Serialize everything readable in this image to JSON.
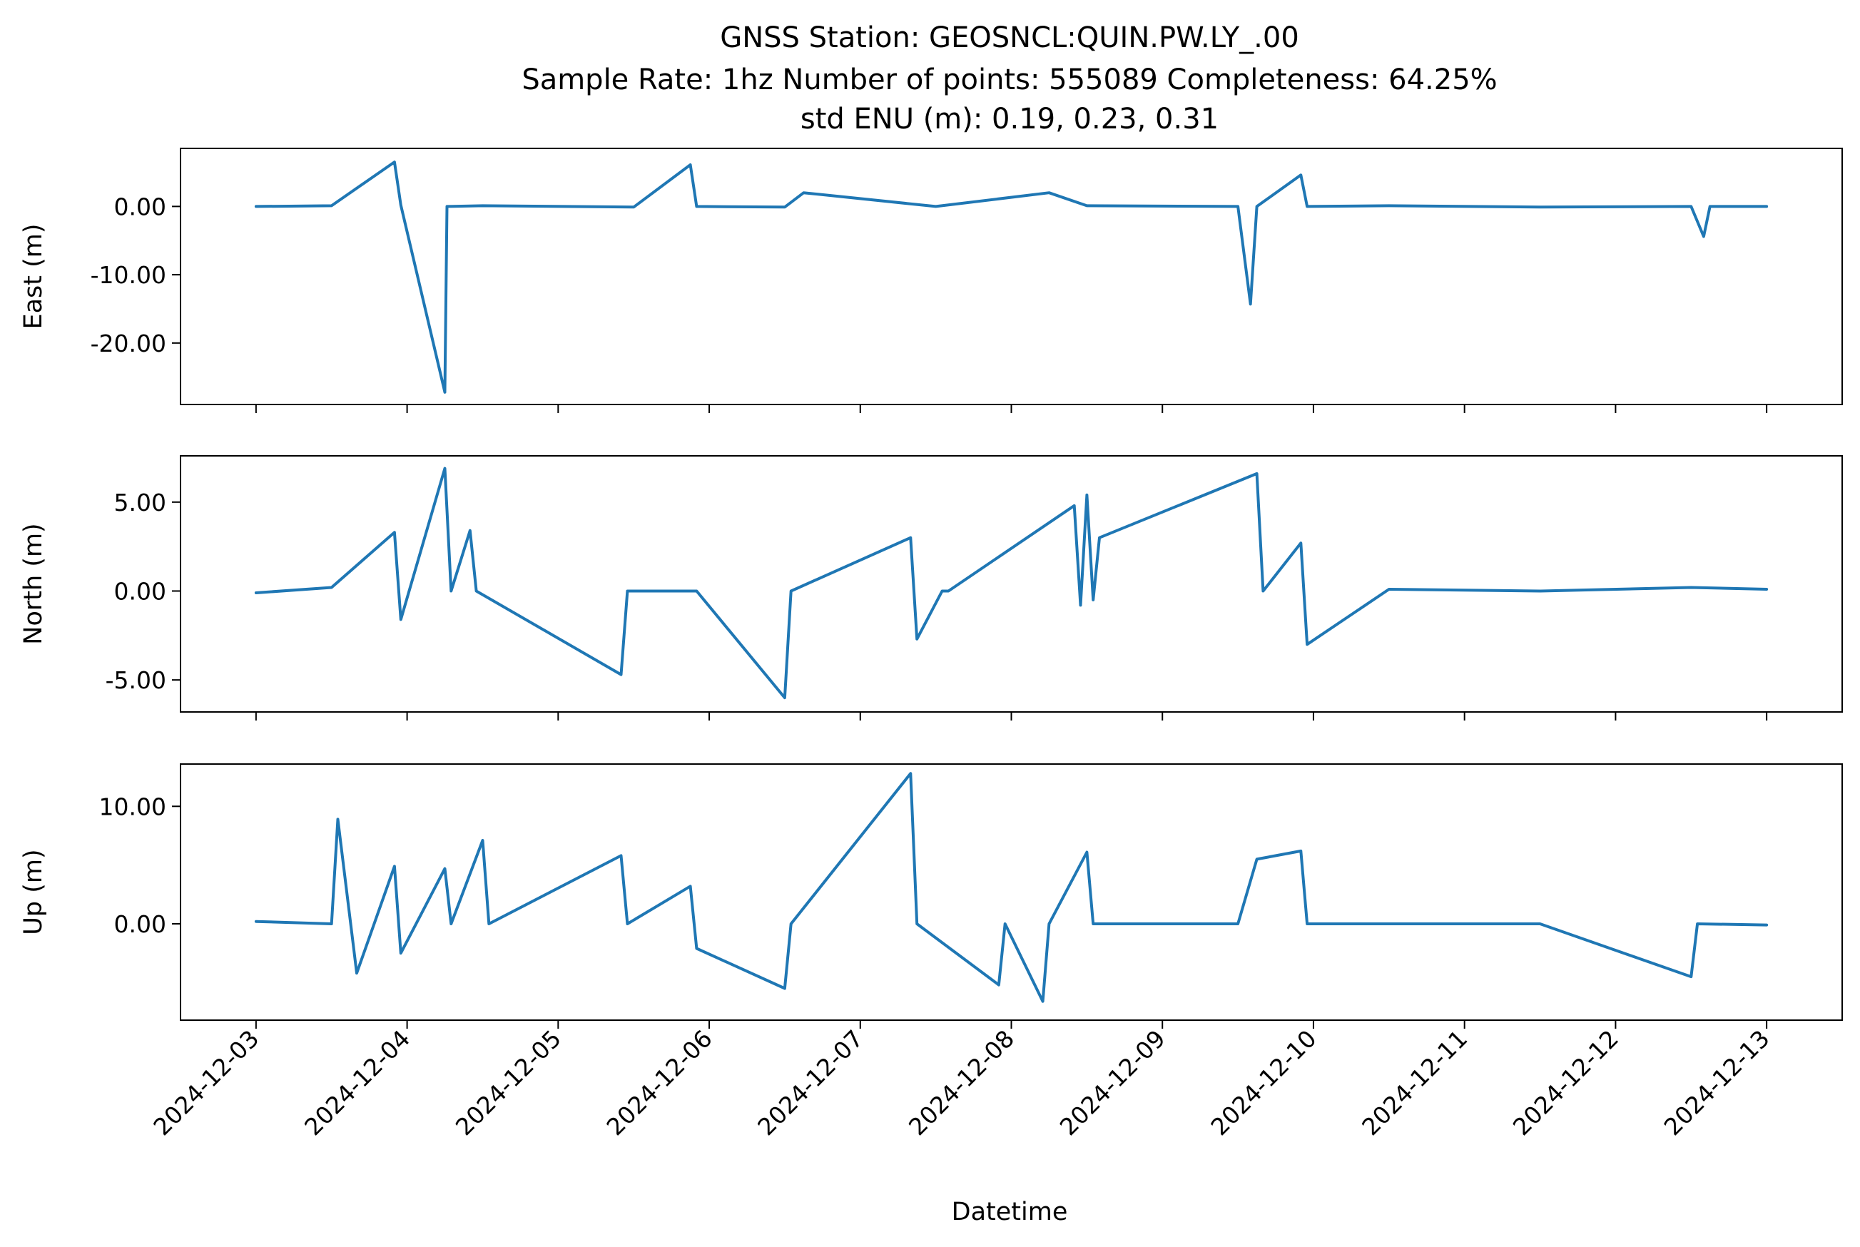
{
  "figure": {
    "title_lines": [
      "GNSS Station: GEOSNCL:QUIN.PW.LY_.00",
      "Sample Rate: 1hz   Number of points: 555089    Completeness:  64.25%",
      "std ENU (m):  0.19, 0.23, 0.31"
    ],
    "xlabel": "Datetime",
    "line_color": "#1f77b4"
  },
  "chart_data": [
    {
      "type": "line",
      "title": "",
      "xlabel": "",
      "ylabel": "East (m)",
      "xlim": [
        "2024-12-02T12:00",
        "2024-12-13T12:00"
      ],
      "ylim": [
        -29.0,
        8.5
      ],
      "yticks": [
        0,
        -10,
        -20
      ],
      "ytick_labels": [
        "0.00",
        "-10.00",
        "-20.00"
      ],
      "xticks": [
        "2024-12-03",
        "2024-12-04",
        "2024-12-05",
        "2024-12-06",
        "2024-12-07",
        "2024-12-08",
        "2024-12-09",
        "2024-12-10",
        "2024-12-11",
        "2024-12-12",
        "2024-12-13"
      ],
      "xtick_labels_shown": false,
      "grid": false,
      "series": [
        {
          "x": [
            "2024-12-03T00:00",
            "2024-12-03T12:00",
            "2024-12-03T22:00",
            "2024-12-03T23:00",
            "2024-12-04T06:00",
            "2024-12-04T06:20",
            "2024-12-04T12:00",
            "2024-12-05T12:00",
            "2024-12-05T21:00",
            "2024-12-05T22:00",
            "2024-12-06T12:00",
            "2024-12-06T15:00",
            "2024-12-07T12:00",
            "2024-12-08T06:00",
            "2024-12-08T12:00",
            "2024-12-09T12:00",
            "2024-12-09T14:00",
            "2024-12-09T15:00",
            "2024-12-09T22:00",
            "2024-12-09T23:00",
            "2024-12-10T12:00",
            "2024-12-11T12:00",
            "2024-12-12T12:00",
            "2024-12-12T14:00",
            "2024-12-12T15:00",
            "2024-12-13T00:00"
          ],
          "y": [
            0.0,
            0.1,
            6.5,
            0.2,
            -27.2,
            0.0,
            0.1,
            -0.1,
            6.1,
            0.0,
            -0.1,
            2.0,
            0.0,
            2.0,
            0.1,
            0.0,
            -14.3,
            0.0,
            4.6,
            0.0,
            0.1,
            -0.1,
            0.0,
            -4.4,
            0.0,
            0.0
          ]
        }
      ]
    },
    {
      "type": "line",
      "title": "",
      "xlabel": "",
      "ylabel": "North (m)",
      "xlim": [
        "2024-12-02T12:00",
        "2024-12-13T12:00"
      ],
      "ylim": [
        -6.8,
        7.6
      ],
      "yticks": [
        5,
        0,
        -5
      ],
      "ytick_labels": [
        "5.00",
        "0.00",
        "-5.00"
      ],
      "xticks": [
        "2024-12-03",
        "2024-12-04",
        "2024-12-05",
        "2024-12-06",
        "2024-12-07",
        "2024-12-08",
        "2024-12-09",
        "2024-12-10",
        "2024-12-11",
        "2024-12-12",
        "2024-12-13"
      ],
      "xtick_labels_shown": false,
      "grid": false,
      "series": [
        {
          "x": [
            "2024-12-03T00:00",
            "2024-12-03T12:00",
            "2024-12-03T22:00",
            "2024-12-03T23:00",
            "2024-12-04T06:00",
            "2024-12-04T07:00",
            "2024-12-04T10:00",
            "2024-12-04T11:00",
            "2024-12-05T10:00",
            "2024-12-05T11:00",
            "2024-12-05T22:00",
            "2024-12-06T12:00",
            "2024-12-06T13:00",
            "2024-12-07T08:00",
            "2024-12-07T09:00",
            "2024-12-07T13:00",
            "2024-12-07T14:00",
            "2024-12-08T10:00",
            "2024-12-08T11:00",
            "2024-12-08T12:00",
            "2024-12-08T13:00",
            "2024-12-08T14:00",
            "2024-12-09T15:00",
            "2024-12-09T16:00",
            "2024-12-09T22:00",
            "2024-12-09T23:00",
            "2024-12-10T12:00",
            "2024-12-11T12:00",
            "2024-12-12T12:00",
            "2024-12-13T00:00"
          ],
          "y": [
            -0.1,
            0.2,
            3.3,
            -1.6,
            6.9,
            0.0,
            3.4,
            0.0,
            -4.7,
            0.0,
            0.0,
            -6.0,
            0.0,
            3.0,
            -2.7,
            0.0,
            0.0,
            4.8,
            -0.8,
            5.4,
            -0.5,
            3.0,
            6.6,
            0.0,
            2.7,
            -3.0,
            0.1,
            0.0,
            0.2,
            0.1
          ]
        }
      ]
    },
    {
      "type": "line",
      "title": "",
      "xlabel": "Datetime",
      "ylabel": "Up (m)",
      "xlim": [
        "2024-12-02T12:00",
        "2024-12-13T12:00"
      ],
      "ylim": [
        -8.2,
        13.6
      ],
      "yticks": [
        10,
        0
      ],
      "ytick_labels": [
        "10.00",
        "0.00"
      ],
      "xticks": [
        "2024-12-03",
        "2024-12-04",
        "2024-12-05",
        "2024-12-06",
        "2024-12-07",
        "2024-12-08",
        "2024-12-09",
        "2024-12-10",
        "2024-12-11",
        "2024-12-12",
        "2024-12-13"
      ],
      "xtick_labels": [
        "2024-12-03",
        "2024-12-04",
        "2024-12-05",
        "2024-12-06",
        "2024-12-07",
        "2024-12-08",
        "2024-12-09",
        "2024-12-10",
        "2024-12-11",
        "2024-12-12",
        "2024-12-13"
      ],
      "xtick_labels_shown": true,
      "grid": false,
      "series": [
        {
          "x": [
            "2024-12-03T00:00",
            "2024-12-03T12:00",
            "2024-12-03T13:00",
            "2024-12-03T16:00",
            "2024-12-03T22:00",
            "2024-12-03T23:00",
            "2024-12-04T06:00",
            "2024-12-04T07:00",
            "2024-12-04T12:00",
            "2024-12-04T13:00",
            "2024-12-05T10:00",
            "2024-12-05T11:00",
            "2024-12-05T21:00",
            "2024-12-05T22:00",
            "2024-12-06T12:00",
            "2024-12-06T13:00",
            "2024-12-07T08:00",
            "2024-12-07T09:00",
            "2024-12-07T22:00",
            "2024-12-07T23:00",
            "2024-12-08T05:00",
            "2024-12-08T06:00",
            "2024-12-08T12:00",
            "2024-12-08T13:00",
            "2024-12-09T12:00",
            "2024-12-09T15:00",
            "2024-12-09T22:00",
            "2024-12-09T23:00",
            "2024-12-10T12:00",
            "2024-12-11T12:00",
            "2024-12-12T12:00",
            "2024-12-12T13:00",
            "2024-12-13T00:00"
          ],
          "y": [
            0.2,
            0.0,
            8.9,
            -4.2,
            4.9,
            -2.5,
            4.7,
            0.0,
            7.1,
            0.0,
            5.8,
            0.0,
            3.2,
            -2.1,
            -5.5,
            0.0,
            12.8,
            0.0,
            -5.2,
            0.0,
            -6.6,
            0.0,
            6.1,
            0.0,
            0.0,
            5.5,
            6.2,
            0.0,
            0.0,
            0.0,
            -4.5,
            0.0,
            -0.1
          ]
        }
      ]
    }
  ]
}
